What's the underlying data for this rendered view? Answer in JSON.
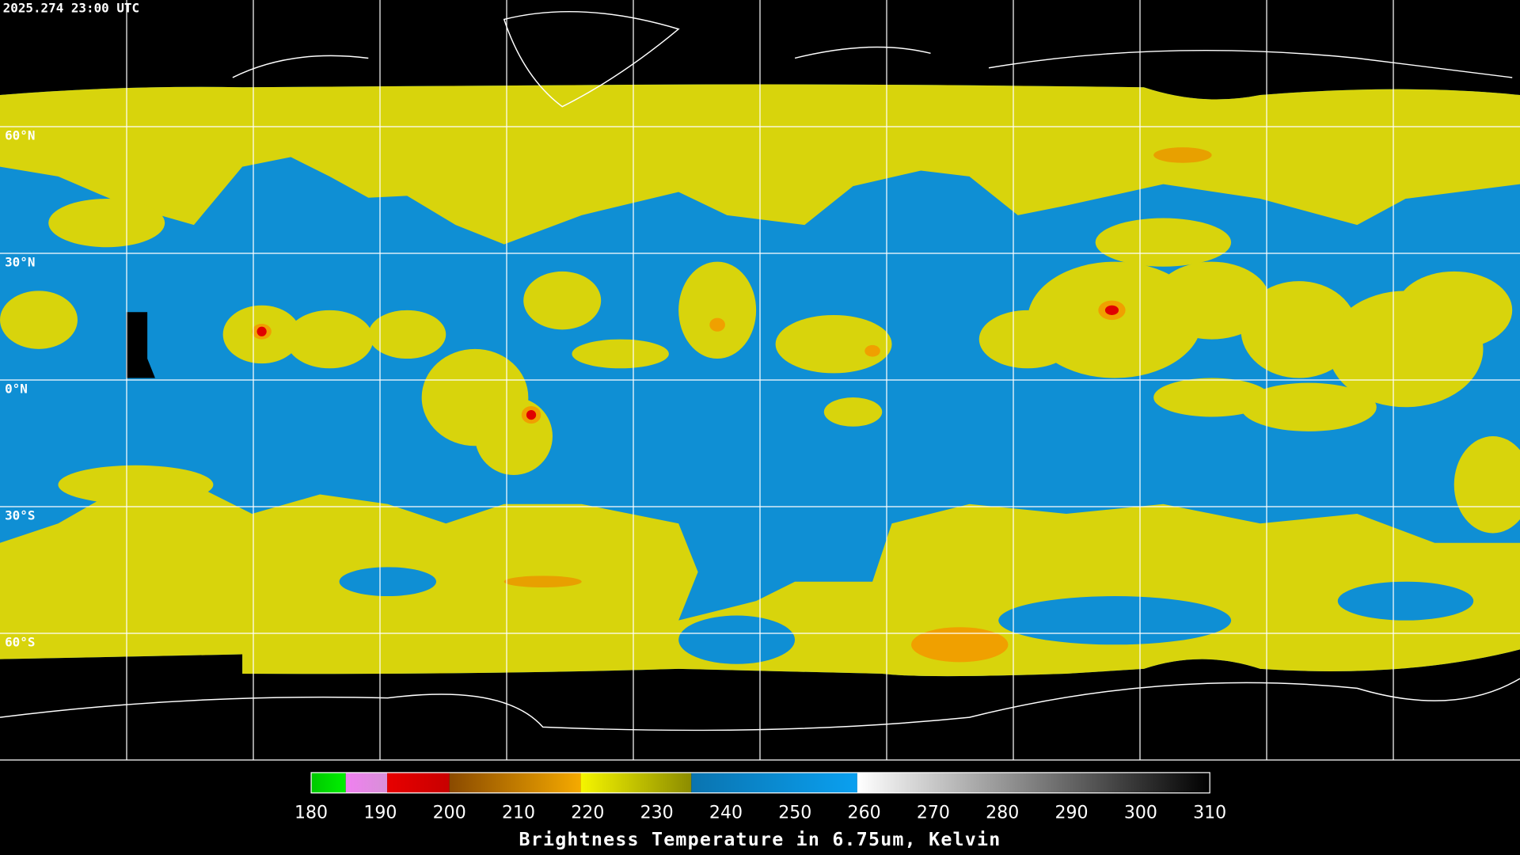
{
  "header": {
    "timestamp": "2025.274 23:00 UTC"
  },
  "map": {
    "lat_lim": [
      90,
      -90
    ],
    "lat_lines": [
      {
        "value": 60,
        "label": "60°N"
      },
      {
        "value": 30,
        "label": "30°N"
      },
      {
        "value": 0,
        "label": "0°N"
      },
      {
        "value": -30,
        "label": "30°S"
      },
      {
        "value": -60,
        "label": "60°S"
      }
    ]
  },
  "colorbar": {
    "title": "Brightness Temperature in 6.75um, Kelvin",
    "lim": [
      180,
      310
    ],
    "ticks": [
      180,
      190,
      200,
      210,
      220,
      230,
      240,
      250,
      260,
      270,
      280,
      290,
      300,
      310
    ],
    "segments": [
      {
        "from": 180,
        "to": 185,
        "colors": [
          "#00c800",
          "#00f000"
        ]
      },
      {
        "from": 185,
        "to": 191,
        "colors": [
          "#f080f0",
          "#d890d8"
        ]
      },
      {
        "from": 191,
        "to": 200,
        "colors": [
          "#e80000",
          "#c80000"
        ]
      },
      {
        "from": 200,
        "to": 219,
        "colors": [
          "#8a4a00",
          "#f5aa00"
        ]
      },
      {
        "from": 219,
        "to": 235,
        "colors": [
          "#f5f500",
          "#8c8c00"
        ]
      },
      {
        "from": 235,
        "to": 259,
        "colors": [
          "#0a74b0",
          "#0aa0f0"
        ]
      },
      {
        "from": 259,
        "to": 310,
        "colors": [
          "#ffffff",
          "#000000"
        ]
      }
    ]
  }
}
